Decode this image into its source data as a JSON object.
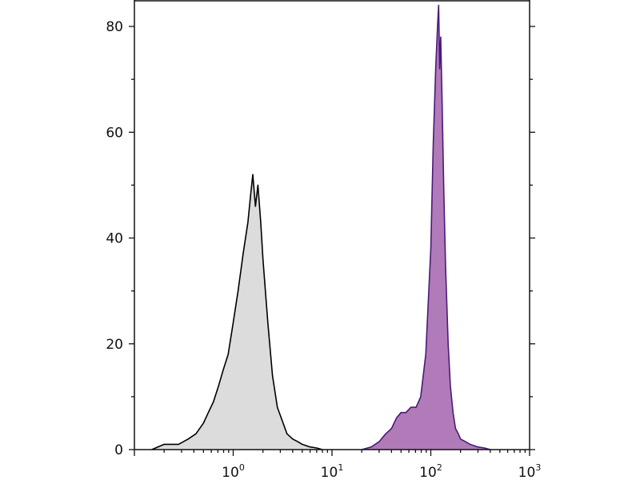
{
  "chart_data": {
    "type": "area",
    "x_scale": "log",
    "xlim": [
      0.1,
      1000
    ],
    "ylim": [
      0,
      85
    ],
    "grid": false,
    "legend": "none",
    "x_ticks": [
      {
        "base": "10",
        "exp": "0",
        "value": 1
      },
      {
        "base": "10",
        "exp": "1",
        "value": 10
      },
      {
        "base": "10",
        "exp": "2",
        "value": 100
      },
      {
        "base": "10",
        "exp": "3",
        "value": 1000
      }
    ],
    "y_ticks": [
      {
        "label": "0",
        "value": 0
      },
      {
        "label": "20",
        "value": 20
      },
      {
        "label": "40",
        "value": 40
      },
      {
        "label": "60",
        "value": 60
      },
      {
        "label": "80",
        "value": 80
      }
    ],
    "series": [
      {
        "color": "#000000",
        "fill": "#dcdcdc",
        "x": [
          0.15,
          0.2,
          0.28,
          0.35,
          0.42,
          0.5,
          0.56,
          0.63,
          0.71,
          0.79,
          0.89,
          1.0,
          1.12,
          1.26,
          1.41,
          1.5,
          1.58,
          1.68,
          1.78,
          1.9,
          2.0,
          2.24,
          2.5,
          2.8,
          3.2,
          3.5,
          4.0,
          4.5,
          5.0,
          6.0,
          7.0,
          8.0
        ],
        "y": [
          0,
          1,
          1,
          2,
          3,
          5,
          7,
          9,
          12,
          15,
          18,
          24,
          30,
          37,
          43,
          48,
          52,
          46,
          50,
          43,
          36,
          24,
          14,
          8,
          5,
          3,
          2,
          1.5,
          1,
          0.5,
          0.3,
          0
        ]
      },
      {
        "color": "#4b1a7a",
        "fill": "#b07bb8",
        "x": [
          20,
          25,
          30,
          35,
          40,
          45,
          50,
          56,
          63,
          71,
          79,
          89,
          100,
          106,
          112,
          117,
          120,
          123,
          126,
          130,
          135,
          141,
          150,
          158,
          168,
          178,
          190,
          200,
          224,
          250,
          300,
          350,
          400
        ],
        "y": [
          0,
          0.5,
          1.5,
          3,
          4,
          6,
          7,
          7,
          8,
          8,
          10,
          18,
          38,
          58,
          72,
          80,
          84,
          72,
          78,
          66,
          50,
          35,
          20,
          12,
          7,
          4,
          3,
          2,
          1.5,
          1,
          0.5,
          0.3,
          0
        ]
      }
    ]
  }
}
